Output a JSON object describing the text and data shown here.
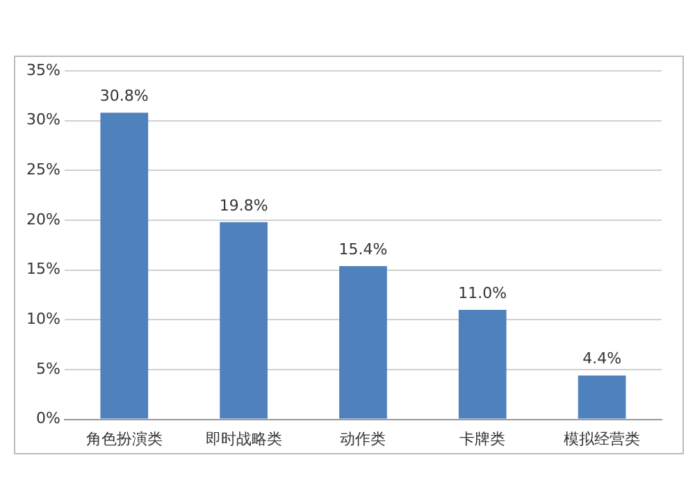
{
  "chart_data": {
    "type": "bar",
    "categories": [
      "角色扮演类",
      "即时战略类",
      "动作类",
      "卡牌类",
      "模拟经营类"
    ],
    "values": [
      30.8,
      19.8,
      15.4,
      11.0,
      4.4
    ],
    "color": "#4f81bd",
    "value_labels": [
      "30.8%",
      "19.8%",
      "15.4%",
      "11.0%",
      "4.4%"
    ],
    "ylim": [
      0,
      35
    ],
    "yticks": [
      {
        "value": 0,
        "label": "0%"
      },
      {
        "value": 5,
        "label": "5%"
      },
      {
        "value": 10,
        "label": "10%"
      },
      {
        "value": 15,
        "label": "15%"
      },
      {
        "value": 20,
        "label": "20%"
      },
      {
        "value": 25,
        "label": "25%"
      },
      {
        "value": 30,
        "label": "30%"
      },
      {
        "value": 35,
        "label": "35%"
      }
    ],
    "grid": "y"
  }
}
